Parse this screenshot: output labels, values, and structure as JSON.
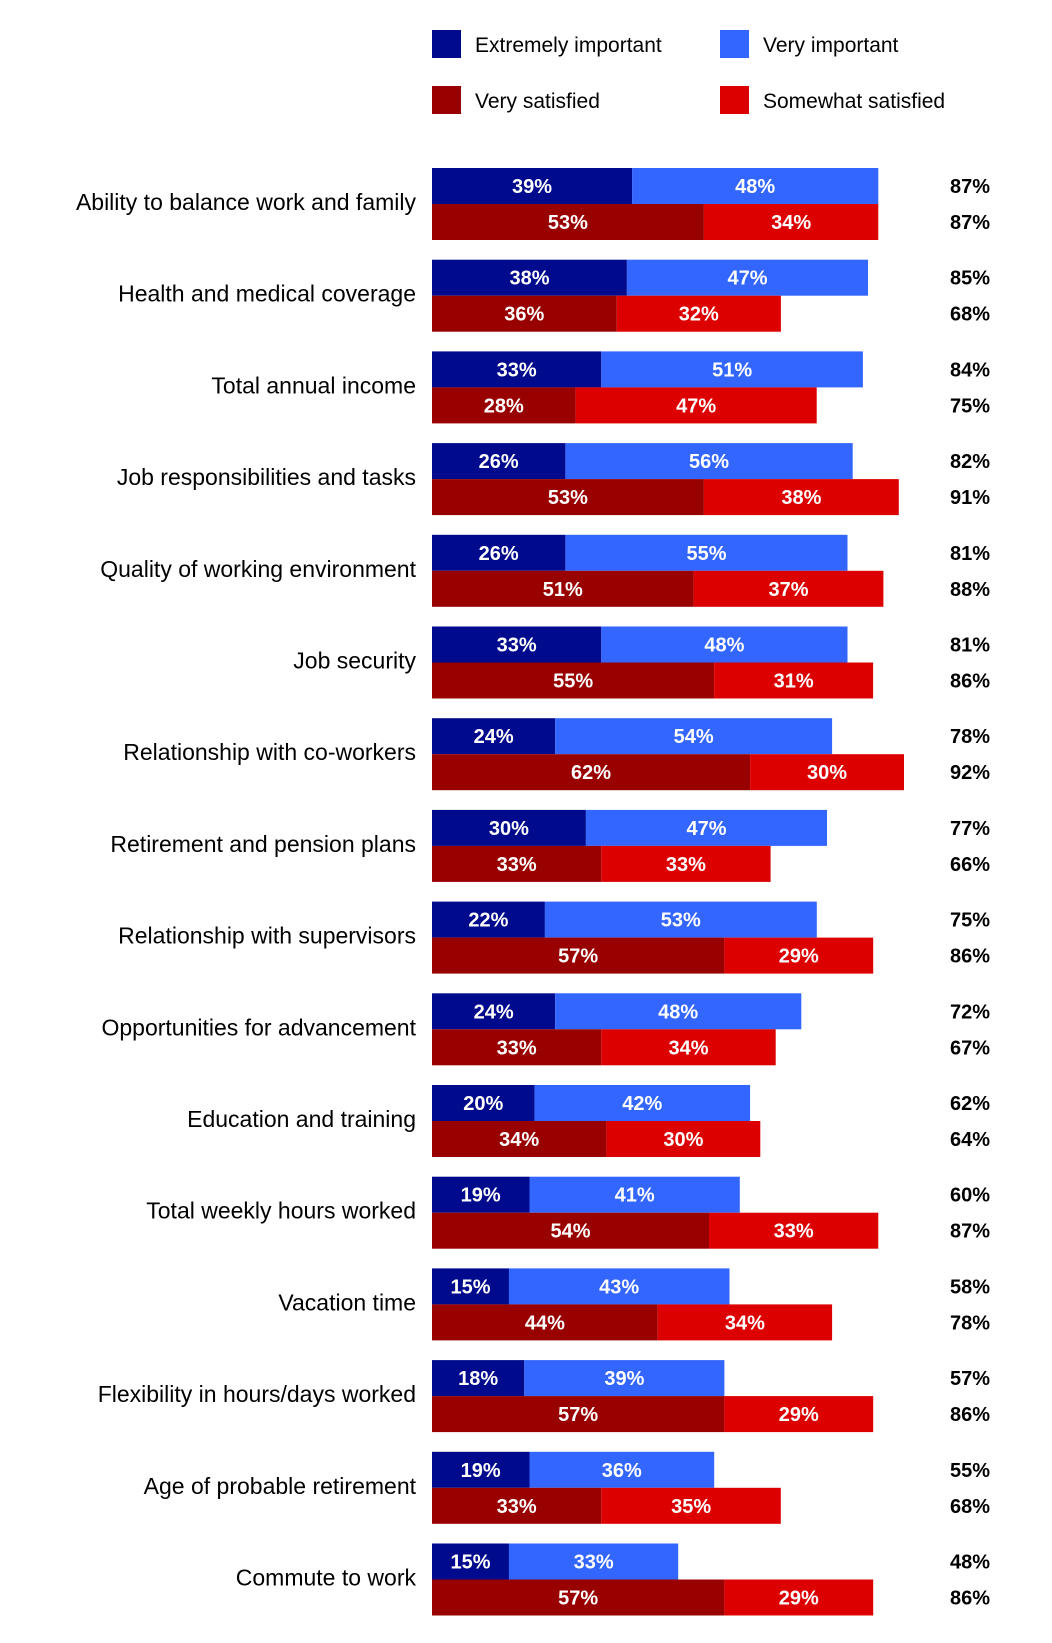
{
  "chart_data": {
    "type": "bar",
    "orientation": "horizontal",
    "stacked": true,
    "title": "",
    "xlabel": "",
    "ylabel": "",
    "xlim": [
      0,
      100
    ],
    "legend_position": "top",
    "series": [
      {
        "name": "Extremely important",
        "group": "importance",
        "color": "#000a8c"
      },
      {
        "name": "Very important",
        "group": "importance",
        "color": "#3366ff"
      },
      {
        "name": "Very satisfied",
        "group": "satisfaction",
        "color": "#990000"
      },
      {
        "name": "Somewhat satisfied",
        "group": "satisfaction",
        "color": "#dd0000"
      }
    ],
    "categories": [
      {
        "label": "Ability to balance work and family",
        "extremely_important": 39,
        "very_important": 48,
        "importance_total": "87%",
        "very_satisfied": 53,
        "somewhat_satisfied": 34,
        "satisfaction_total": "87%"
      },
      {
        "label": "Health and medical coverage",
        "extremely_important": 38,
        "very_important": 47,
        "importance_total": "85%",
        "very_satisfied": 36,
        "somewhat_satisfied": 32,
        "satisfaction_total": "68%"
      },
      {
        "label": "Total annual income",
        "extremely_important": 33,
        "very_important": 51,
        "importance_total": "84%",
        "very_satisfied": 28,
        "somewhat_satisfied": 47,
        "satisfaction_total": "75%"
      },
      {
        "label": "Job responsibilities and tasks",
        "extremely_important": 26,
        "very_important": 56,
        "importance_total": "82%",
        "very_satisfied": 53,
        "somewhat_satisfied": 38,
        "satisfaction_total": "91%"
      },
      {
        "label": "Quality of working environment",
        "extremely_important": 26,
        "very_important": 55,
        "importance_total": "81%",
        "very_satisfied": 51,
        "somewhat_satisfied": 37,
        "satisfaction_total": "88%"
      },
      {
        "label": "Job security",
        "extremely_important": 33,
        "very_important": 48,
        "importance_total": "81%",
        "very_satisfied": 55,
        "somewhat_satisfied": 31,
        "satisfaction_total": "86%"
      },
      {
        "label": "Relationship with co-workers",
        "extremely_important": 24,
        "very_important": 54,
        "importance_total": "78%",
        "very_satisfied": 62,
        "somewhat_satisfied": 30,
        "satisfaction_total": "92%"
      },
      {
        "label": "Retirement and pension plans",
        "extremely_important": 30,
        "very_important": 47,
        "importance_total": "77%",
        "very_satisfied": 33,
        "somewhat_satisfied": 33,
        "satisfaction_total": "66%"
      },
      {
        "label": "Relationship with supervisors",
        "extremely_important": 22,
        "very_important": 53,
        "importance_total": "75%",
        "very_satisfied": 57,
        "somewhat_satisfied": 29,
        "satisfaction_total": "86%"
      },
      {
        "label": "Opportunities for advancement",
        "extremely_important": 24,
        "very_important": 48,
        "importance_total": "72%",
        "very_satisfied": 33,
        "somewhat_satisfied": 34,
        "satisfaction_total": "67%"
      },
      {
        "label": "Education and training",
        "extremely_important": 20,
        "very_important": 42,
        "importance_total": "62%",
        "very_satisfied": 34,
        "somewhat_satisfied": 30,
        "satisfaction_total": "64%"
      },
      {
        "label": "Total weekly hours worked",
        "extremely_important": 19,
        "very_important": 41,
        "importance_total": "60%",
        "very_satisfied": 54,
        "somewhat_satisfied": 33,
        "satisfaction_total": "87%"
      },
      {
        "label": "Vacation time",
        "extremely_important": 15,
        "very_important": 43,
        "importance_total": "58%",
        "very_satisfied": 44,
        "somewhat_satisfied": 34,
        "satisfaction_total": "78%"
      },
      {
        "label": "Flexibility in hours/days worked",
        "extremely_important": 18,
        "very_important": 39,
        "importance_total": "57%",
        "very_satisfied": 57,
        "somewhat_satisfied": 29,
        "satisfaction_total": "86%"
      },
      {
        "label": "Age of probable retirement",
        "extremely_important": 19,
        "very_important": 36,
        "importance_total": "55%",
        "very_satisfied": 33,
        "somewhat_satisfied": 35,
        "satisfaction_total": "68%"
      },
      {
        "label": "Commute to work",
        "extremely_important": 15,
        "very_important": 33,
        "importance_total": "48%",
        "very_satisfied": 57,
        "somewhat_satisfied": 29,
        "satisfaction_total": "86%"
      }
    ]
  }
}
